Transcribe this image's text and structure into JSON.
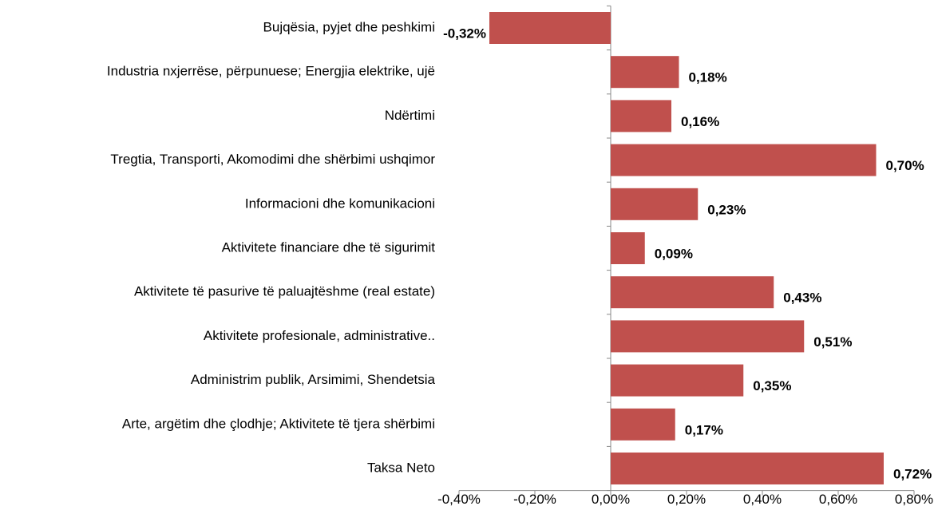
{
  "chart_data": {
    "type": "bar",
    "orientation": "horizontal",
    "categories": [
      "Bujqësia, pyjet dhe peshkimi",
      "Industria nxjerrëse, përpunuese; Energjia elektrike, ujë",
      "Ndërtimi",
      "Tregtia, Transporti, Akomodimi dhe shërbimi ushqimor",
      "Informacioni dhe komunikacioni",
      "Aktivitete financiare dhe të sigurimit",
      "Aktivitete të pasurive të paluajtëshme (real estate)",
      "Aktivitete profesionale, administrative..",
      "Administrim publik, Arsimimi, Shendetsia",
      "Arte, argëtim dhe çlodhje; Aktivitete të tjera shërbimi",
      "Taksa Neto"
    ],
    "values": [
      -0.32,
      0.18,
      0.16,
      0.7,
      0.23,
      0.09,
      0.43,
      0.51,
      0.35,
      0.17,
      0.72
    ],
    "value_labels": [
      "-0,32%",
      "0,18%",
      "0,16%",
      "0,70%",
      "0,23%",
      "0,09%",
      "0,43%",
      "0,51%",
      "0,35%",
      "0,17%",
      "0,72%"
    ],
    "color": "#c0504d",
    "xlim": [
      -0.4,
      0.8
    ],
    "xticks": [
      {
        "value": -0.4,
        "label": "-0,40%"
      },
      {
        "value": -0.2,
        "label": "-0,20%"
      },
      {
        "value": 0,
        "label": "0,00%"
      },
      {
        "value": 0.2,
        "label": "0,20%"
      },
      {
        "value": 0.4,
        "label": "0,40%"
      },
      {
        "value": 0.6,
        "label": "0,60%"
      },
      {
        "value": 0.8,
        "label": "0,80%"
      }
    ],
    "grid": false
  }
}
